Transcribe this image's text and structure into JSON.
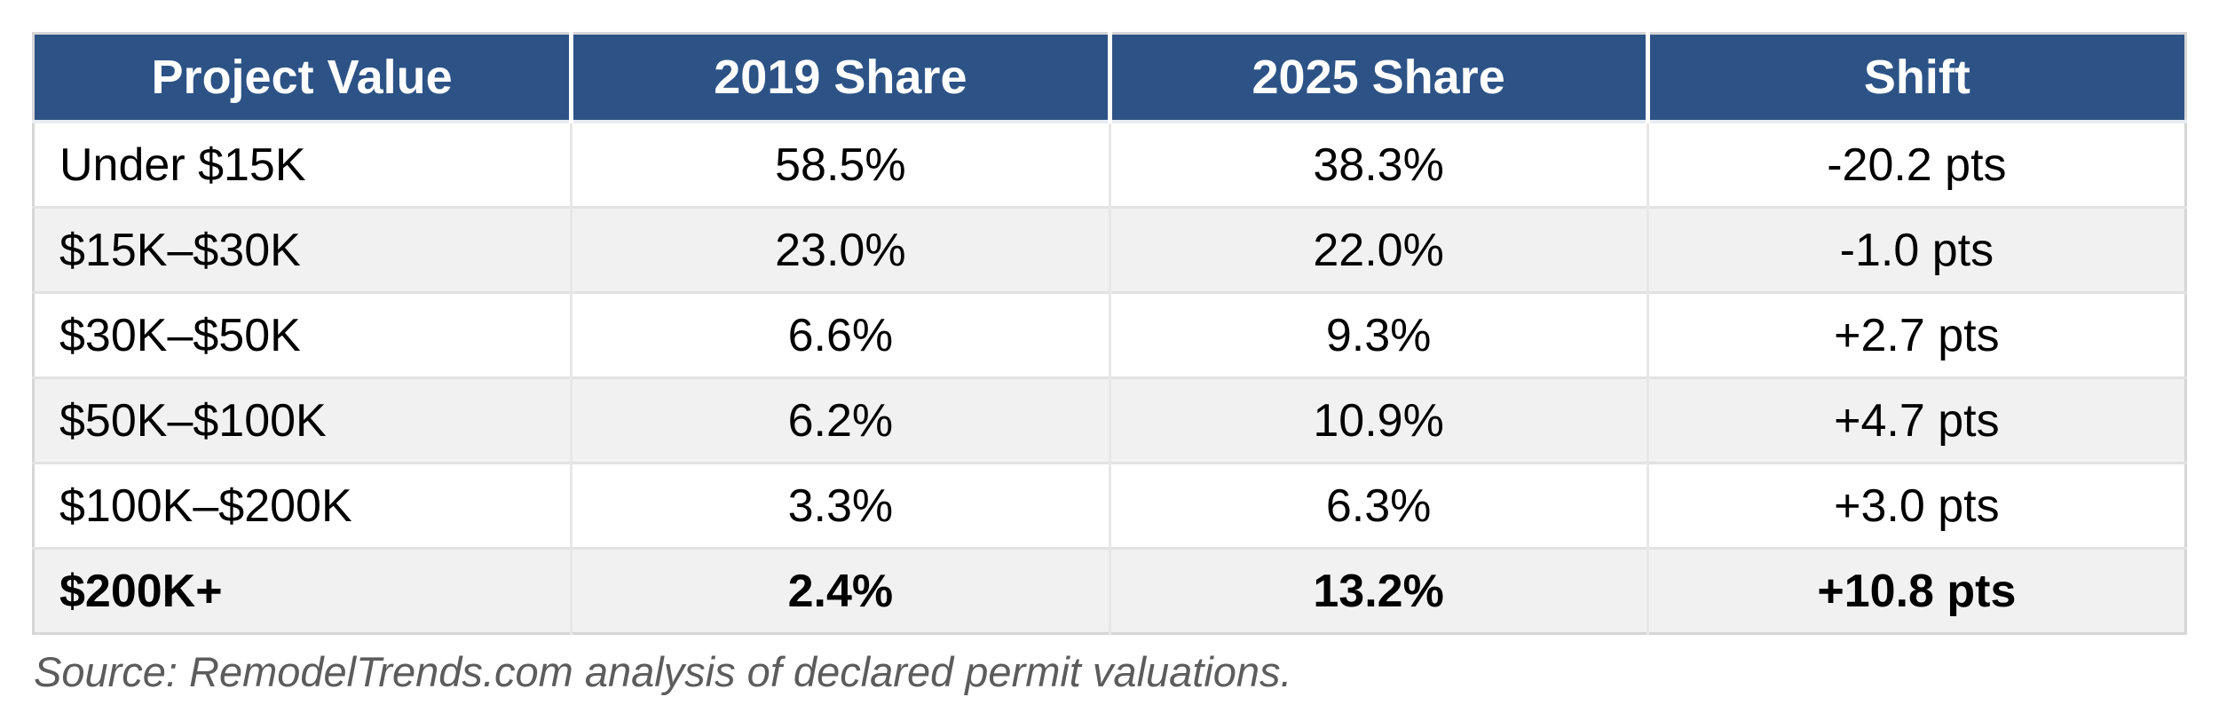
{
  "table": {
    "columns": [
      "Project Value",
      "2019 Share",
      "2025 Share",
      "Shift"
    ],
    "rows": [
      {
        "cells": [
          "Under $15K",
          "58.5%",
          "38.3%",
          "-20.2 pts"
        ],
        "emphasis": false
      },
      {
        "cells": [
          "$15K–$30K",
          "23.0%",
          "22.0%",
          "-1.0 pts"
        ],
        "emphasis": false
      },
      {
        "cells": [
          "$30K–$50K",
          "6.6%",
          "9.3%",
          "+2.7 pts"
        ],
        "emphasis": false
      },
      {
        "cells": [
          "$50K–$100K",
          "6.2%",
          "10.9%",
          "+4.7 pts"
        ],
        "emphasis": false
      },
      {
        "cells": [
          "$100K–$200K",
          "3.3%",
          "6.3%",
          "+3.0 pts"
        ],
        "emphasis": false
      },
      {
        "cells": [
          "$200K+",
          "2.4%",
          "13.2%",
          "+10.8 pts"
        ],
        "emphasis": true
      }
    ]
  },
  "source_note": "Source: RemodelTrends.com analysis of declared permit valuations.",
  "colors": {
    "header_bg": "#2d5386",
    "header_text": "#ffffff",
    "row_bg": "#ffffff",
    "row_alt_bg": "#f1f1f1",
    "border": "#e2e2e2",
    "outer_border": "#d6d6d6",
    "body_text": "#000000",
    "source_text": "#5c5c5c"
  },
  "chart_data": {
    "type": "table",
    "title": "",
    "columns": [
      "Project Value",
      "2019 Share",
      "2025 Share",
      "Shift"
    ],
    "categories": [
      "Under $15K",
      "$15K–$30K",
      "$30K–$50K",
      "$50K–$100K",
      "$100K–$200K",
      "$200K+"
    ],
    "series": [
      {
        "name": "2019 Share",
        "unit": "%",
        "values": [
          58.5,
          23.0,
          6.6,
          6.2,
          3.3,
          2.4
        ]
      },
      {
        "name": "2025 Share",
        "unit": "%",
        "values": [
          38.3,
          22.0,
          9.3,
          10.9,
          6.3,
          13.2
        ]
      },
      {
        "name": "Shift",
        "unit": "pts",
        "values": [
          -20.2,
          -1.0,
          2.7,
          4.7,
          3.0,
          10.8
        ]
      }
    ],
    "annotations": [
      "Source: RemodelTrends.com analysis of declared permit valuations."
    ],
    "layout": {
      "header_style": "dark-blue band, white bold text",
      "striped_rows": true,
      "last_row_bold": true
    }
  }
}
